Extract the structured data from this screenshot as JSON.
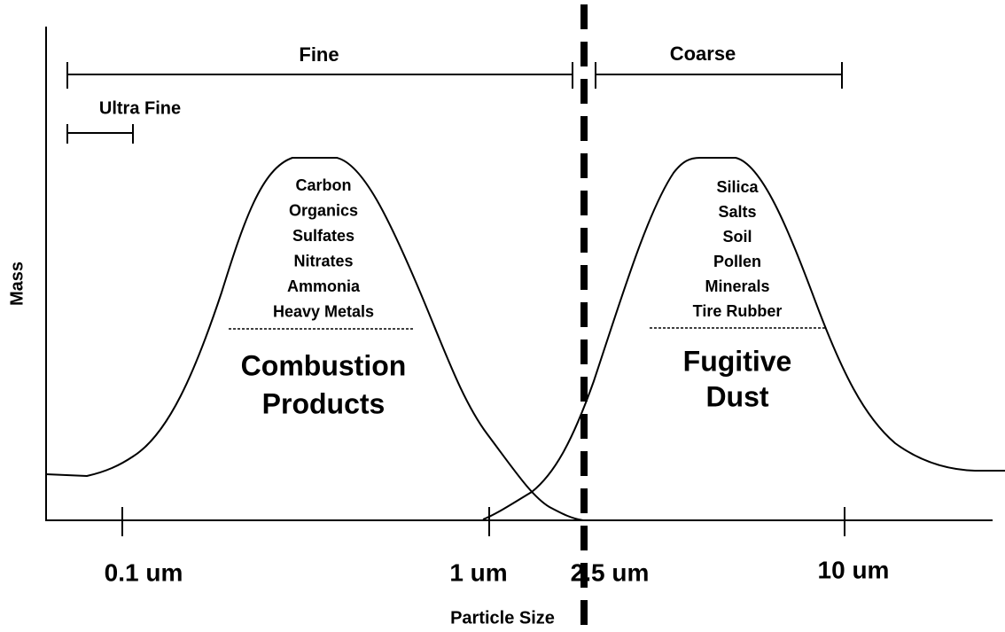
{
  "axes": {
    "y_label": "Mass",
    "x_label": "Particle Size",
    "x_ticks": [
      "0.1 um",
      "1 um",
      "2.5 um",
      "10 um"
    ]
  },
  "ranges": {
    "fine": "Fine",
    "ultra_fine": "Ultra Fine",
    "coarse": "Coarse"
  },
  "modes": [
    {
      "items": [
        "Carbon",
        "Organics",
        "Sulfates",
        "Nitrates",
        "Ammonia",
        "Heavy Metals"
      ],
      "title": [
        "Combustion",
        "Products"
      ]
    },
    {
      "items": [
        "Silica",
        "Salts",
        "Soil",
        "Pollen",
        "Minerals",
        "Tire Rubber"
      ],
      "title": [
        "Fugitive",
        "Dust"
      ]
    }
  ]
}
